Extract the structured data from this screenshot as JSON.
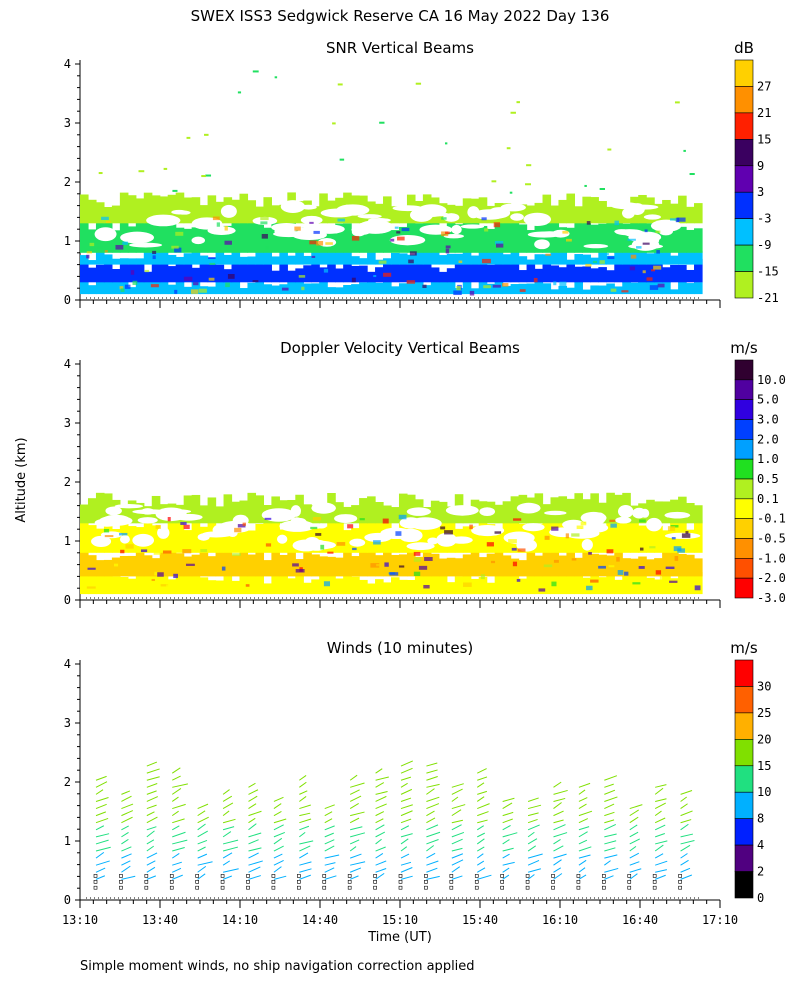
{
  "page": {
    "title": "SWEX ISS3 Sedgwick Reserve CA  16 May 2022 Day 136",
    "ylabel": "Altitude (km)",
    "xlabel": "Time (UT)",
    "footnote": "Simple moment winds, no ship navigation correction applied"
  },
  "chart_data": [
    {
      "type": "heatmap",
      "title": "SNR Vertical Beams",
      "units": "dB",
      "x_ticks": [
        "13:10",
        "13:40",
        "14:10",
        "14:40",
        "15:10",
        "15:40",
        "16:10",
        "16:40",
        "17:10"
      ],
      "y_ticks": [
        "0",
        "1",
        "2",
        "3",
        "4"
      ],
      "ylim": [
        0,
        4
      ],
      "xlim": [
        "13:10",
        "17:10"
      ],
      "colorbar": {
        "labels": [
          "27",
          "21",
          "15",
          "9",
          "3",
          "-3",
          "-9",
          "-15",
          "-21"
        ],
        "colors": [
          "#ffd000",
          "#ff9000",
          "#ff2000",
          "#3a0060",
          "#6000b0",
          "#0030ff",
          "#00c0ff",
          "#20e060",
          "#b0f020"
        ]
      },
      "bands": [
        {
          "ymin": 0.1,
          "ymax": 0.3,
          "color": "#00c0ff"
        },
        {
          "ymin": 0.3,
          "ymax": 0.6,
          "color": "#0030ff"
        },
        {
          "ymin": 0.6,
          "ymax": 0.8,
          "color": "#00c0ff"
        },
        {
          "ymin": 0.8,
          "ymax": 1.3,
          "color": "#20e060"
        },
        {
          "ymin": 1.3,
          "ymax": 1.7,
          "color": "#b0f020"
        }
      ]
    },
    {
      "type": "heatmap",
      "title": "Doppler Velocity Vertical Beams",
      "units": "m/s",
      "x_ticks": [
        "13:10",
        "13:40",
        "14:10",
        "14:40",
        "15:10",
        "15:40",
        "16:10",
        "16:40",
        "17:10"
      ],
      "y_ticks": [
        "0",
        "1",
        "2",
        "3",
        "4"
      ],
      "ylim": [
        0,
        4
      ],
      "xlim": [
        "13:10",
        "17:10"
      ],
      "colorbar": {
        "labels": [
          "10.0",
          "5.0",
          "3.0",
          "2.0",
          "1.0",
          "0.5",
          "0.1",
          "-0.1",
          "-0.5",
          "-1.0",
          "-2.0",
          "-3.0"
        ],
        "colors": [
          "#300030",
          "#5000a0",
          "#3000e0",
          "#0040ff",
          "#00a0ff",
          "#20e020",
          "#b0f020",
          "#ffff00",
          "#ffd000",
          "#ff9000",
          "#ff5000",
          "#ff0000"
        ]
      },
      "bands": [
        {
          "ymin": 0.1,
          "ymax": 0.4,
          "color": "#ffff00"
        },
        {
          "ymin": 0.4,
          "ymax": 0.8,
          "color": "#ffd000"
        },
        {
          "ymin": 0.8,
          "ymax": 1.3,
          "color": "#ffff00"
        },
        {
          "ymin": 1.3,
          "ymax": 1.7,
          "color": "#b0f020"
        }
      ]
    },
    {
      "type": "scatter",
      "title": "Winds (10 minutes)",
      "units": "m/s",
      "x_ticks": [
        "13:10",
        "13:40",
        "14:10",
        "14:40",
        "15:10",
        "15:40",
        "16:10",
        "16:40",
        "17:10"
      ],
      "y_ticks": [
        "0",
        "1",
        "2",
        "3",
        "4"
      ],
      "ylim": [
        0,
        4
      ],
      "xlim": [
        "13:10",
        "17:10"
      ],
      "colorbar": {
        "labels": [
          "30",
          "25",
          "20",
          "15",
          "10",
          "8",
          "4",
          "2",
          "0"
        ],
        "colors": [
          "#ff0000",
          "#ff6000",
          "#ffb000",
          "#80e000",
          "#20e080",
          "#00b0ff",
          "#0020ff",
          "#500080",
          "#000000"
        ]
      }
    }
  ]
}
